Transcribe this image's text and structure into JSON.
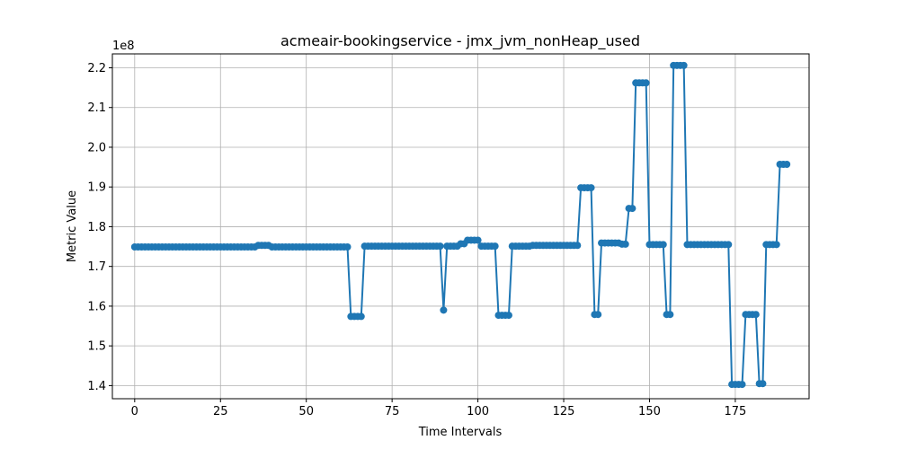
{
  "chart_data": {
    "type": "line",
    "title": "acmeair-bookingservice - jmx_jvm_nonHeap_used",
    "xlabel": "Time Intervals",
    "ylabel": "Metric Value",
    "y_multiplier_label": "1e8",
    "y_multiplier": 100000000,
    "xlim": [
      -6.5,
      196.5
    ],
    "ylim": [
      1.367,
      2.235
    ],
    "x_ticks": [
      0,
      25,
      50,
      75,
      100,
      125,
      150,
      175
    ],
    "x_tick_labels": [
      "0",
      "25",
      "50",
      "75",
      "100",
      "125",
      "150",
      "175"
    ],
    "y_ticks": [
      1.4,
      1.5,
      1.6,
      1.7,
      1.8,
      1.9,
      2.0,
      2.1,
      2.2
    ],
    "y_tick_labels": [
      "1.4",
      "1.5",
      "1.6",
      "1.7",
      "1.8",
      "1.9",
      "2.0",
      "2.1",
      "2.2"
    ],
    "grid": true,
    "color": "#1f77b4",
    "series": [
      {
        "values": [
          1.749,
          1.749,
          1.749,
          1.749,
          1.749,
          1.749,
          1.749,
          1.749,
          1.749,
          1.749,
          1.749,
          1.749,
          1.749,
          1.749,
          1.749,
          1.749,
          1.749,
          1.749,
          1.749,
          1.749,
          1.749,
          1.749,
          1.749,
          1.749,
          1.749,
          1.749,
          1.749,
          1.749,
          1.749,
          1.749,
          1.749,
          1.749,
          1.749,
          1.749,
          1.749,
          1.749,
          1.753,
          1.753,
          1.753,
          1.753,
          1.749,
          1.749,
          1.749,
          1.749,
          1.749,
          1.749,
          1.749,
          1.749,
          1.749,
          1.749,
          1.749,
          1.749,
          1.749,
          1.749,
          1.749,
          1.749,
          1.749,
          1.749,
          1.749,
          1.749,
          1.749,
          1.749,
          1.749,
          1.574,
          1.574,
          1.574,
          1.574,
          1.751,
          1.751,
          1.751,
          1.751,
          1.751,
          1.751,
          1.751,
          1.751,
          1.751,
          1.751,
          1.751,
          1.751,
          1.751,
          1.751,
          1.751,
          1.751,
          1.751,
          1.751,
          1.751,
          1.751,
          1.751,
          1.751,
          1.751,
          1.59,
          1.751,
          1.751,
          1.751,
          1.751,
          1.757,
          1.757,
          1.766,
          1.766,
          1.766,
          1.766,
          1.751,
          1.751,
          1.751,
          1.751,
          1.751,
          1.577,
          1.577,
          1.577,
          1.577,
          1.751,
          1.751,
          1.751,
          1.751,
          1.751,
          1.751,
          1.753,
          1.753,
          1.753,
          1.753,
          1.753,
          1.753,
          1.753,
          1.753,
          1.753,
          1.753,
          1.753,
          1.753,
          1.753,
          1.753,
          1.898,
          1.898,
          1.898,
          1.898,
          1.579,
          1.579,
          1.759,
          1.759,
          1.759,
          1.759,
          1.759,
          1.759,
          1.756,
          1.756,
          1.846,
          1.846,
          2.162,
          2.162,
          2.162,
          2.162,
          1.755,
          1.755,
          1.755,
          1.755,
          1.755,
          1.579,
          1.579,
          2.206,
          2.206,
          2.206,
          2.206,
          1.755,
          1.755,
          1.755,
          1.755,
          1.755,
          1.755,
          1.755,
          1.755,
          1.755,
          1.755,
          1.755,
          1.755,
          1.755,
          1.403,
          1.403,
          1.403,
          1.403,
          1.579,
          1.579,
          1.579,
          1.579,
          1.405,
          1.405,
          1.755,
          1.755,
          1.755,
          1.755,
          1.957,
          1.957,
          1.957
        ]
      }
    ]
  }
}
